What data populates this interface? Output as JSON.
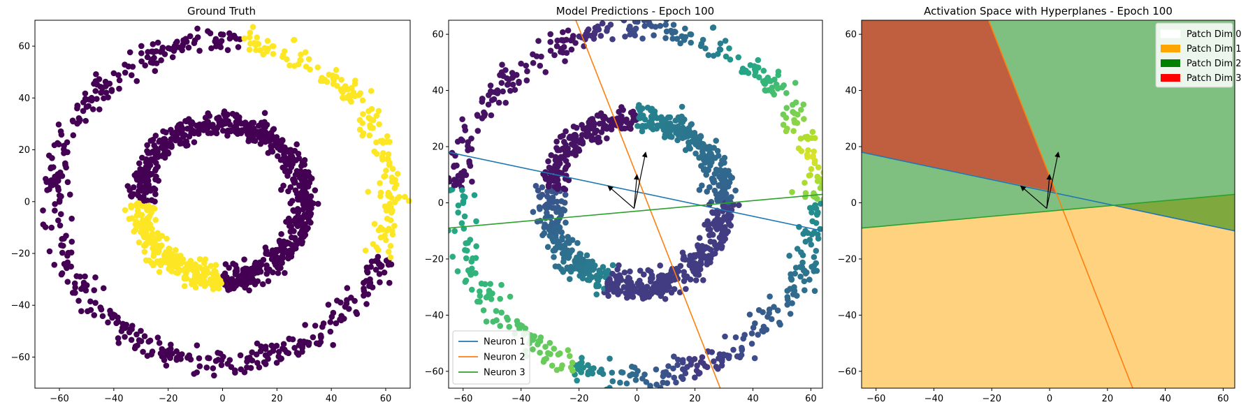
{
  "chart_data": [
    {
      "type": "scatter",
      "title": "Ground Truth",
      "xlabel": "",
      "ylabel": "",
      "xlim": [
        -69,
        69
      ],
      "ylim": [
        -72,
        70
      ],
      "xticks": [
        "−60",
        "−40",
        "−20",
        "0",
        "20",
        "40",
        "60"
      ],
      "xtick_values": [
        -60,
        -40,
        -20,
        0,
        20,
        40,
        60
      ],
      "yticks": [
        "−60",
        "−40",
        "−20",
        "0",
        "20",
        "40",
        "60"
      ],
      "ytick_values": [
        -60,
        -40,
        -20,
        0,
        20,
        40,
        60
      ],
      "grid": false,
      "colors": {
        "class0": "#440154",
        "class1": "#fde725"
      },
      "series": [
        {
          "shape": "outer ring",
          "radius": 62,
          "class_by_angle": [
            {
              "from_deg": -20,
              "to_deg": 84,
              "class": 1
            }
          ],
          "default_class": 0
        },
        {
          "shape": "inner ring",
          "radius": 30,
          "class_by_angle": [
            {
              "from_deg": 180,
              "to_deg": 270,
              "class": 1
            }
          ],
          "default_class": 0
        }
      ]
    },
    {
      "type": "scatter",
      "title": "Model Predictions - Epoch 100",
      "xlabel": "",
      "ylabel": "",
      "xlim": [
        -65,
        64
      ],
      "ylim": [
        -66,
        65
      ],
      "xticks": [
        "−60",
        "−40",
        "−20",
        "0",
        "20",
        "40",
        "60"
      ],
      "xtick_values": [
        -60,
        -40,
        -20,
        0,
        20,
        40,
        60
      ],
      "yticks": [
        "−60",
        "−40",
        "−20",
        "0",
        "20",
        "40",
        "60"
      ],
      "ytick_values": [
        -60,
        -40,
        -20,
        0,
        20,
        40,
        60
      ],
      "grid": false,
      "colormap": "viridis",
      "lines": [
        {
          "name": "Neuron 1",
          "color": "#1f77b4",
          "points": [
            [
              -65,
              18
            ],
            [
              64,
              -10
            ]
          ]
        },
        {
          "name": "Neuron 2",
          "color": "#ff7f0e",
          "points": [
            [
              -23,
              70
            ],
            [
              31,
              -72
            ]
          ]
        },
        {
          "name": "Neuron 3",
          "color": "#2ca02c",
          "points": [
            [
              -65,
              -9
            ],
            [
              64,
              3
            ]
          ]
        }
      ],
      "arrows": [
        {
          "from": [
            -1,
            -2
          ],
          "to": [
            -10,
            6
          ]
        },
        {
          "from": [
            -1,
            -2
          ],
          "to": [
            3,
            18
          ]
        },
        {
          "from": [
            -1,
            -2
          ],
          "to": [
            0,
            10
          ]
        }
      ],
      "legend": {
        "position": "bottom-left",
        "entries": [
          "Neuron 1",
          "Neuron 2",
          "Neuron 3"
        ]
      }
    },
    {
      "type": "area",
      "title": "Activation Space with Hyperplanes - Epoch 100",
      "xlabel": "",
      "ylabel": "",
      "xlim": [
        -65,
        64
      ],
      "ylim": [
        -66,
        65
      ],
      "xticks": [
        "−60",
        "−40",
        "−20",
        "0",
        "20",
        "40",
        "60"
      ],
      "xtick_values": [
        -60,
        -40,
        -20,
        0,
        20,
        40,
        60
      ],
      "yticks": [
        "−60",
        "−40",
        "−20",
        "0",
        "20",
        "40",
        "60"
      ],
      "ytick_values": [
        -60,
        -40,
        -20,
        0,
        20,
        40,
        60
      ],
      "grid": false,
      "regions": [
        {
          "name": "Patch Dim 0",
          "color": "#ffffff"
        },
        {
          "name": "Patch Dim 1",
          "color": "#ffa500"
        },
        {
          "name": "Patch Dim 2",
          "color": "#008000"
        },
        {
          "name": "Patch Dim 3",
          "color": "#ff0000"
        }
      ],
      "legend": {
        "position": "top-right",
        "entries": [
          "Patch Dim 0",
          "Patch Dim 1",
          "Patch Dim 2",
          "Patch Dim 3"
        ]
      }
    }
  ]
}
